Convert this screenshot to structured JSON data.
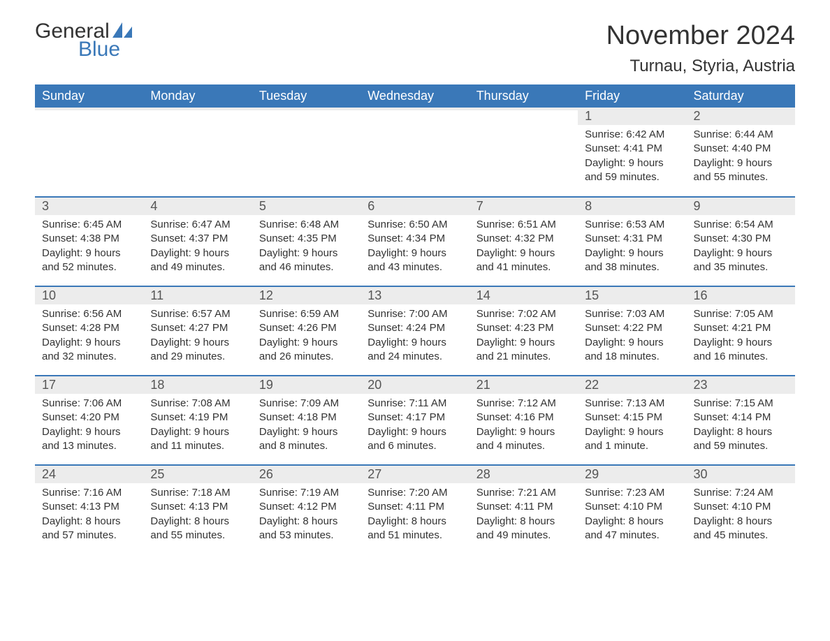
{
  "brand": {
    "text_general": "General",
    "text_blue": "Blue",
    "icon_fill": "#3a78b8"
  },
  "title": "November 2024",
  "location": "Turnau, Styria, Austria",
  "colors": {
    "header_bg": "#3a78b8",
    "header_text": "#ffffff",
    "daynum_bg": "#ececec",
    "row_border": "#3a78b8",
    "text": "#333333",
    "background": "#ffffff"
  },
  "day_headers": [
    "Sunday",
    "Monday",
    "Tuesday",
    "Wednesday",
    "Thursday",
    "Friday",
    "Saturday"
  ],
  "weeks": [
    [
      {
        "day": "",
        "sunrise": "",
        "sunset": "",
        "daylight1": "",
        "daylight2": ""
      },
      {
        "day": "",
        "sunrise": "",
        "sunset": "",
        "daylight1": "",
        "daylight2": ""
      },
      {
        "day": "",
        "sunrise": "",
        "sunset": "",
        "daylight1": "",
        "daylight2": ""
      },
      {
        "day": "",
        "sunrise": "",
        "sunset": "",
        "daylight1": "",
        "daylight2": ""
      },
      {
        "day": "",
        "sunrise": "",
        "sunset": "",
        "daylight1": "",
        "daylight2": ""
      },
      {
        "day": "1",
        "sunrise": "Sunrise: 6:42 AM",
        "sunset": "Sunset: 4:41 PM",
        "daylight1": "Daylight: 9 hours",
        "daylight2": "and 59 minutes."
      },
      {
        "day": "2",
        "sunrise": "Sunrise: 6:44 AM",
        "sunset": "Sunset: 4:40 PM",
        "daylight1": "Daylight: 9 hours",
        "daylight2": "and 55 minutes."
      }
    ],
    [
      {
        "day": "3",
        "sunrise": "Sunrise: 6:45 AM",
        "sunset": "Sunset: 4:38 PM",
        "daylight1": "Daylight: 9 hours",
        "daylight2": "and 52 minutes."
      },
      {
        "day": "4",
        "sunrise": "Sunrise: 6:47 AM",
        "sunset": "Sunset: 4:37 PM",
        "daylight1": "Daylight: 9 hours",
        "daylight2": "and 49 minutes."
      },
      {
        "day": "5",
        "sunrise": "Sunrise: 6:48 AM",
        "sunset": "Sunset: 4:35 PM",
        "daylight1": "Daylight: 9 hours",
        "daylight2": "and 46 minutes."
      },
      {
        "day": "6",
        "sunrise": "Sunrise: 6:50 AM",
        "sunset": "Sunset: 4:34 PM",
        "daylight1": "Daylight: 9 hours",
        "daylight2": "and 43 minutes."
      },
      {
        "day": "7",
        "sunrise": "Sunrise: 6:51 AM",
        "sunset": "Sunset: 4:32 PM",
        "daylight1": "Daylight: 9 hours",
        "daylight2": "and 41 minutes."
      },
      {
        "day": "8",
        "sunrise": "Sunrise: 6:53 AM",
        "sunset": "Sunset: 4:31 PM",
        "daylight1": "Daylight: 9 hours",
        "daylight2": "and 38 minutes."
      },
      {
        "day": "9",
        "sunrise": "Sunrise: 6:54 AM",
        "sunset": "Sunset: 4:30 PM",
        "daylight1": "Daylight: 9 hours",
        "daylight2": "and 35 minutes."
      }
    ],
    [
      {
        "day": "10",
        "sunrise": "Sunrise: 6:56 AM",
        "sunset": "Sunset: 4:28 PM",
        "daylight1": "Daylight: 9 hours",
        "daylight2": "and 32 minutes."
      },
      {
        "day": "11",
        "sunrise": "Sunrise: 6:57 AM",
        "sunset": "Sunset: 4:27 PM",
        "daylight1": "Daylight: 9 hours",
        "daylight2": "and 29 minutes."
      },
      {
        "day": "12",
        "sunrise": "Sunrise: 6:59 AM",
        "sunset": "Sunset: 4:26 PM",
        "daylight1": "Daylight: 9 hours",
        "daylight2": "and 26 minutes."
      },
      {
        "day": "13",
        "sunrise": "Sunrise: 7:00 AM",
        "sunset": "Sunset: 4:24 PM",
        "daylight1": "Daylight: 9 hours",
        "daylight2": "and 24 minutes."
      },
      {
        "day": "14",
        "sunrise": "Sunrise: 7:02 AM",
        "sunset": "Sunset: 4:23 PM",
        "daylight1": "Daylight: 9 hours",
        "daylight2": "and 21 minutes."
      },
      {
        "day": "15",
        "sunrise": "Sunrise: 7:03 AM",
        "sunset": "Sunset: 4:22 PM",
        "daylight1": "Daylight: 9 hours",
        "daylight2": "and 18 minutes."
      },
      {
        "day": "16",
        "sunrise": "Sunrise: 7:05 AM",
        "sunset": "Sunset: 4:21 PM",
        "daylight1": "Daylight: 9 hours",
        "daylight2": "and 16 minutes."
      }
    ],
    [
      {
        "day": "17",
        "sunrise": "Sunrise: 7:06 AM",
        "sunset": "Sunset: 4:20 PM",
        "daylight1": "Daylight: 9 hours",
        "daylight2": "and 13 minutes."
      },
      {
        "day": "18",
        "sunrise": "Sunrise: 7:08 AM",
        "sunset": "Sunset: 4:19 PM",
        "daylight1": "Daylight: 9 hours",
        "daylight2": "and 11 minutes."
      },
      {
        "day": "19",
        "sunrise": "Sunrise: 7:09 AM",
        "sunset": "Sunset: 4:18 PM",
        "daylight1": "Daylight: 9 hours",
        "daylight2": "and 8 minutes."
      },
      {
        "day": "20",
        "sunrise": "Sunrise: 7:11 AM",
        "sunset": "Sunset: 4:17 PM",
        "daylight1": "Daylight: 9 hours",
        "daylight2": "and 6 minutes."
      },
      {
        "day": "21",
        "sunrise": "Sunrise: 7:12 AM",
        "sunset": "Sunset: 4:16 PM",
        "daylight1": "Daylight: 9 hours",
        "daylight2": "and 4 minutes."
      },
      {
        "day": "22",
        "sunrise": "Sunrise: 7:13 AM",
        "sunset": "Sunset: 4:15 PM",
        "daylight1": "Daylight: 9 hours",
        "daylight2": "and 1 minute."
      },
      {
        "day": "23",
        "sunrise": "Sunrise: 7:15 AM",
        "sunset": "Sunset: 4:14 PM",
        "daylight1": "Daylight: 8 hours",
        "daylight2": "and 59 minutes."
      }
    ],
    [
      {
        "day": "24",
        "sunrise": "Sunrise: 7:16 AM",
        "sunset": "Sunset: 4:13 PM",
        "daylight1": "Daylight: 8 hours",
        "daylight2": "and 57 minutes."
      },
      {
        "day": "25",
        "sunrise": "Sunrise: 7:18 AM",
        "sunset": "Sunset: 4:13 PM",
        "daylight1": "Daylight: 8 hours",
        "daylight2": "and 55 minutes."
      },
      {
        "day": "26",
        "sunrise": "Sunrise: 7:19 AM",
        "sunset": "Sunset: 4:12 PM",
        "daylight1": "Daylight: 8 hours",
        "daylight2": "and 53 minutes."
      },
      {
        "day": "27",
        "sunrise": "Sunrise: 7:20 AM",
        "sunset": "Sunset: 4:11 PM",
        "daylight1": "Daylight: 8 hours",
        "daylight2": "and 51 minutes."
      },
      {
        "day": "28",
        "sunrise": "Sunrise: 7:21 AM",
        "sunset": "Sunset: 4:11 PM",
        "daylight1": "Daylight: 8 hours",
        "daylight2": "and 49 minutes."
      },
      {
        "day": "29",
        "sunrise": "Sunrise: 7:23 AM",
        "sunset": "Sunset: 4:10 PM",
        "daylight1": "Daylight: 8 hours",
        "daylight2": "and 47 minutes."
      },
      {
        "day": "30",
        "sunrise": "Sunrise: 7:24 AM",
        "sunset": "Sunset: 4:10 PM",
        "daylight1": "Daylight: 8 hours",
        "daylight2": "and 45 minutes."
      }
    ]
  ]
}
